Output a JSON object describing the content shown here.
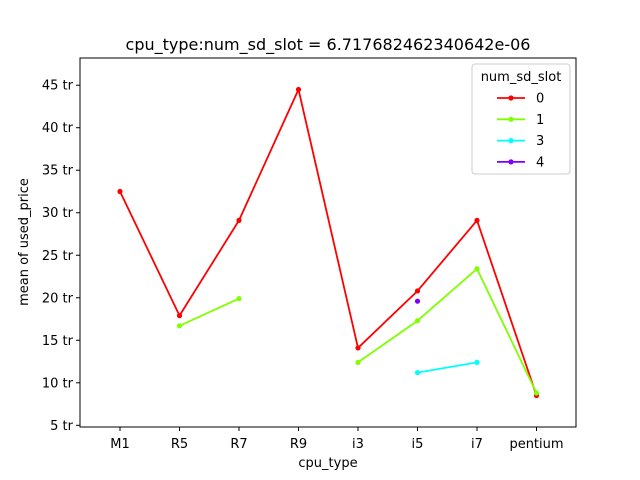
{
  "chart_data": {
    "type": "line",
    "title": "cpu_type:num_sd_slot = 6.717682462340642e-06",
    "xlabel": "cpu_type",
    "ylabel": "mean of used_price",
    "categories": [
      "M1",
      "R5",
      "R7",
      "R9",
      "i3",
      "i5",
      "i7",
      "pentium"
    ],
    "ylim": [
      4.8,
      48.2
    ],
    "yticks": [
      {
        "value": 5,
        "label": "5 tr"
      },
      {
        "value": 10,
        "label": "10 tr"
      },
      {
        "value": 15,
        "label": "15 tr"
      },
      {
        "value": 20,
        "label": "20 tr"
      },
      {
        "value": 25,
        "label": "25 tr"
      },
      {
        "value": 30,
        "label": "30 tr"
      },
      {
        "value": 35,
        "label": "35 tr"
      },
      {
        "value": 40,
        "label": "40 tr"
      },
      {
        "value": 45,
        "label": "45 tr"
      }
    ],
    "grid": false,
    "legend": {
      "title": "num_sd_slot",
      "position": "top-right"
    },
    "series": [
      {
        "name": "0",
        "color": "#ff0000",
        "values": [
          32.5,
          17.9,
          29.1,
          44.5,
          14.1,
          20.8,
          29.1,
          8.5
        ]
      },
      {
        "name": "1",
        "color": "#80ff00",
        "values": [
          null,
          16.7,
          19.9,
          null,
          12.4,
          17.3,
          23.4,
          8.8
        ]
      },
      {
        "name": "3",
        "color": "#00ffff",
        "values": [
          null,
          null,
          null,
          null,
          null,
          11.2,
          12.4,
          null
        ]
      },
      {
        "name": "4",
        "color": "#8000ff",
        "values": [
          null,
          null,
          null,
          null,
          null,
          19.6,
          null,
          null
        ]
      }
    ]
  }
}
